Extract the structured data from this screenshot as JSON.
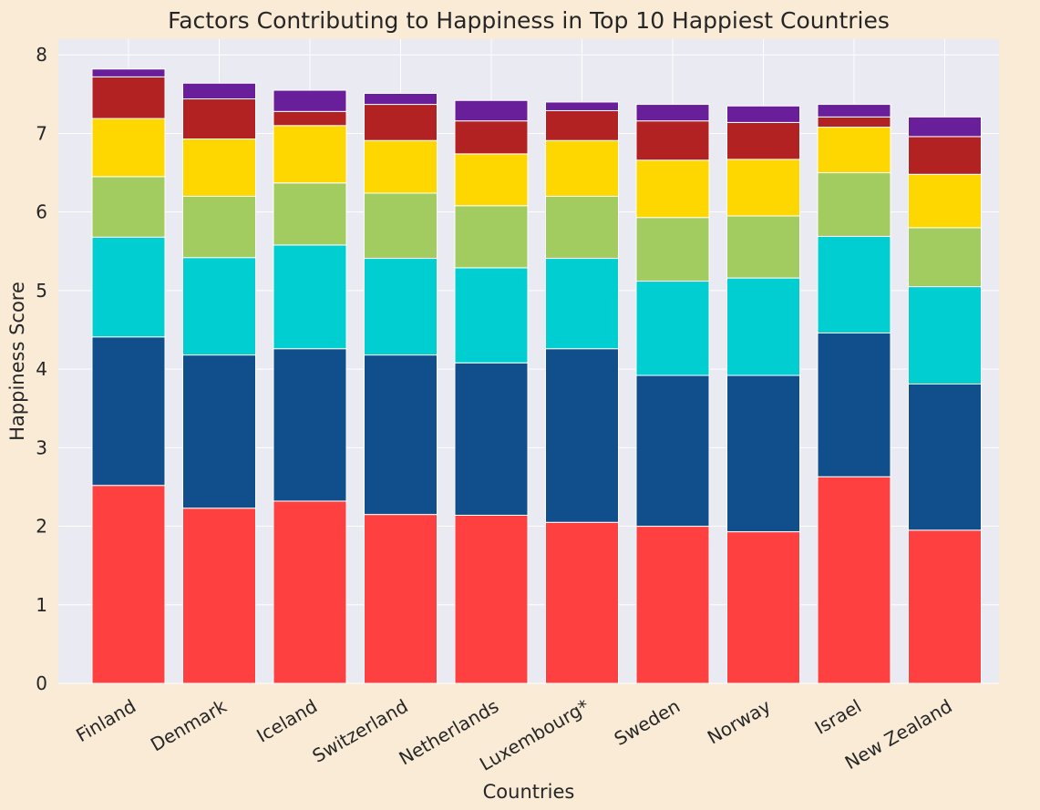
{
  "chart_data": {
    "type": "bar",
    "stacked": true,
    "title": "Factors Contributing to Happiness in Top 10 Happiest Countries",
    "xlabel": "Countries",
    "ylabel": "Happiness Score",
    "ylim": [
      0,
      8.2
    ],
    "yticks": [
      0,
      1,
      2,
      3,
      4,
      5,
      6,
      7,
      8
    ],
    "grid": true,
    "legend": "none",
    "categories": [
      "Finland",
      "Denmark",
      "Iceland",
      "Switzerland",
      "Netherlands",
      "Luxembourg*",
      "Sweden",
      "Norway",
      "Israel",
      "New Zealand"
    ],
    "series": [
      {
        "color": "#ff4040",
        "values": [
          2.52,
          2.23,
          2.32,
          2.15,
          2.14,
          2.05,
          2.0,
          1.93,
          2.63,
          1.95
        ]
      },
      {
        "color": "#114f8c",
        "values": [
          1.89,
          1.95,
          1.94,
          2.03,
          1.94,
          2.21,
          1.92,
          1.99,
          1.83,
          1.86
        ]
      },
      {
        "color": "#00ced1",
        "values": [
          1.27,
          1.24,
          1.32,
          1.23,
          1.21,
          1.15,
          1.2,
          1.24,
          1.23,
          1.24
        ]
      },
      {
        "color": "#a2cb60",
        "values": [
          0.77,
          0.78,
          0.79,
          0.83,
          0.79,
          0.79,
          0.81,
          0.79,
          0.81,
          0.75
        ]
      },
      {
        "color": "#ffd700",
        "values": [
          0.74,
          0.73,
          0.73,
          0.67,
          0.66,
          0.71,
          0.73,
          0.72,
          0.58,
          0.68
        ]
      },
      {
        "color": "#b22222",
        "values": [
          0.53,
          0.51,
          0.18,
          0.46,
          0.42,
          0.38,
          0.5,
          0.47,
          0.13,
          0.48
        ]
      },
      {
        "color": "#6a1f9a",
        "values": [
          0.1,
          0.2,
          0.27,
          0.14,
          0.26,
          0.11,
          0.21,
          0.21,
          0.16,
          0.25
        ]
      }
    ]
  }
}
